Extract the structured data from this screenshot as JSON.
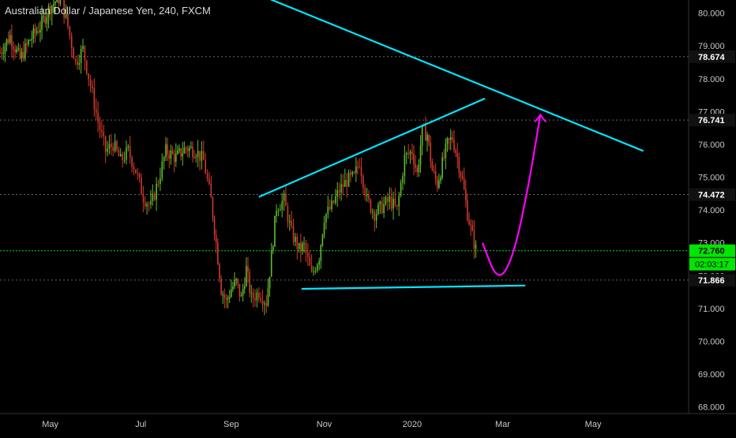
{
  "chart_data": {
    "type": "candlestick",
    "title": "Australian Dollar / Japanese Yen, 240, FXCM",
    "ylim": [
      67.8,
      80.4
    ],
    "y_ticks": [
      "68.000",
      "69.000",
      "70.000",
      "71.000",
      "72.000",
      "73.000",
      "74.000",
      "75.000",
      "76.000",
      "77.000",
      "78.000",
      "79.000",
      "80.000"
    ],
    "x_ticks": [
      "May",
      "Jul",
      "Sep",
      "Nov",
      "2020",
      "Mar",
      "May"
    ],
    "x_tick_positions": [
      0.1,
      0.28,
      0.46,
      0.645,
      0.82,
      1.0,
      1.18
    ],
    "x_range": [
      0.0,
      1.37
    ],
    "grid": false,
    "horizontal_levels": [
      {
        "label": "78.674",
        "value": 78.674,
        "style": "dotted"
      },
      {
        "label": "76.741",
        "value": 76.741,
        "style": "dotted"
      },
      {
        "label": "74.472",
        "value": 74.472,
        "style": "dotted"
      },
      {
        "label": "71.866",
        "value": 71.866,
        "style": "dotted"
      }
    ],
    "current_price": {
      "label": "72.760",
      "value": 72.76,
      "countdown": "02:03:17",
      "color": "#00e600"
    },
    "price_path": [
      [
        0.0,
        78.8
      ],
      [
        0.02,
        79.3
      ],
      [
        0.04,
        78.6
      ],
      [
        0.06,
        79.2
      ],
      [
        0.08,
        79.6
      ],
      [
        0.1,
        80.2
      ],
      [
        0.12,
        80.5
      ],
      [
        0.135,
        79.6
      ],
      [
        0.15,
        78.5
      ],
      [
        0.165,
        78.9
      ],
      [
        0.18,
        77.8
      ],
      [
        0.195,
        76.7
      ],
      [
        0.21,
        75.8
      ],
      [
        0.225,
        76.0
      ],
      [
        0.24,
        75.5
      ],
      [
        0.255,
        75.8
      ],
      [
        0.27,
        75.2
      ],
      [
        0.285,
        74.4
      ],
      [
        0.3,
        74.1
      ],
      [
        0.315,
        74.9
      ],
      [
        0.33,
        75.8
      ],
      [
        0.35,
        75.6
      ],
      [
        0.37,
        75.9
      ],
      [
        0.39,
        75.8
      ],
      [
        0.405,
        75.5
      ],
      [
        0.42,
        74.3
      ],
      [
        0.43,
        73.0
      ],
      [
        0.44,
        71.6
      ],
      [
        0.45,
        71.2
      ],
      [
        0.46,
        71.6
      ],
      [
        0.47,
        71.8
      ],
      [
        0.48,
        71.3
      ],
      [
        0.49,
        72.2
      ],
      [
        0.5,
        71.3
      ],
      [
        0.515,
        71.5
      ],
      [
        0.53,
        71.2
      ],
      [
        0.54,
        72.6
      ],
      [
        0.55,
        74.1
      ],
      [
        0.565,
        74.3
      ],
      [
        0.58,
        73.3
      ],
      [
        0.595,
        72.8
      ],
      [
        0.605,
        72.9
      ],
      [
        0.62,
        72.0
      ],
      [
        0.635,
        72.6
      ],
      [
        0.645,
        73.8
      ],
      [
        0.66,
        74.1
      ],
      [
        0.675,
        74.6
      ],
      [
        0.69,
        74.9
      ],
      [
        0.705,
        75.0
      ],
      [
        0.715,
        75.5
      ],
      [
        0.73,
        74.3
      ],
      [
        0.745,
        73.9
      ],
      [
        0.76,
        74.1
      ],
      [
        0.775,
        74.3
      ],
      [
        0.79,
        74.0
      ],
      [
        0.805,
        75.6
      ],
      [
        0.82,
        75.8
      ],
      [
        0.83,
        75.1
      ],
      [
        0.84,
        76.4
      ],
      [
        0.85,
        76.3
      ],
      [
        0.86,
        75.2
      ],
      [
        0.87,
        74.8
      ],
      [
        0.88,
        75.4
      ],
      [
        0.89,
        76.0
      ],
      [
        0.9,
        76.2
      ],
      [
        0.91,
        75.6
      ],
      [
        0.92,
        74.9
      ],
      [
        0.93,
        73.9
      ],
      [
        0.94,
        73.2
      ],
      [
        0.95,
        72.6
      ]
    ],
    "trendlines": [
      {
        "name": "upper-resistance",
        "color": "#00e5ff",
        "points": [
          [
            0.445,
            81.0
          ],
          [
            1.28,
            75.8
          ]
        ]
      },
      {
        "name": "rising-line",
        "color": "#00e5ff",
        "points": [
          [
            0.515,
            74.4
          ],
          [
            0.965,
            77.4
          ]
        ]
      },
      {
        "name": "support",
        "color": "#00e5ff",
        "points": [
          [
            0.6,
            71.6
          ],
          [
            1.045,
            71.7
          ]
        ]
      }
    ],
    "projection": {
      "color": "#ff00ff",
      "points": [
        [
          0.96,
          73.0
        ],
        [
          0.99,
          71.8
        ],
        [
          1.02,
          72.5
        ],
        [
          1.05,
          74.6
        ],
        [
          1.075,
          76.9
        ]
      ]
    }
  }
}
